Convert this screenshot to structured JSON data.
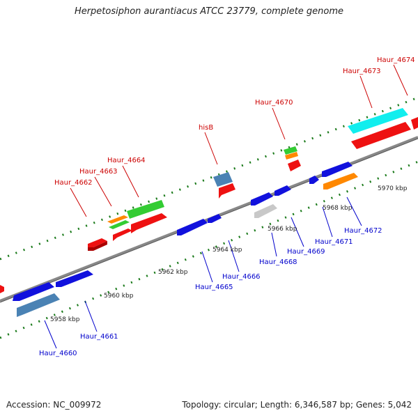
{
  "title": "Herpetosiphon aurantiacus ATCC 23779, complete genome",
  "footer": {
    "accession": "Accession: NC_009972",
    "summary": "Topology: circular; Length: 6,346,587 bp; Genes: 5,042"
  },
  "colors": {
    "backbone": "#888888",
    "tick": "#1a7a1a",
    "label_forward": "#cc0000",
    "label_reverse": "#0000cc",
    "red": "#ee1111",
    "blue": "#1111dd",
    "green": "#33cc33",
    "orange": "#ff8800",
    "steelblue": "#4a82b4",
    "cyan": "#11eeee",
    "gray": "#c8c8c8"
  },
  "kbp_labels": [
    "5958 kbp",
    "5960 kbp",
    "5962 kbp",
    "5964 kbp",
    "5966 kbp",
    "5968 kbp",
    "5970 kbp"
  ],
  "gene_labels": {
    "forward": [
      "Haur_4662",
      "Haur_4663",
      "Haur_4664",
      "hisB",
      "Haur_4670",
      "Haur_4673",
      "Haur_4674"
    ],
    "reverse": [
      "Haur_4660",
      "Haur_4661",
      "Haur_4665",
      "Haur_4666",
      "Haur_4668",
      "Haur_4669",
      "Haur_4671",
      "Haur_4672"
    ]
  }
}
